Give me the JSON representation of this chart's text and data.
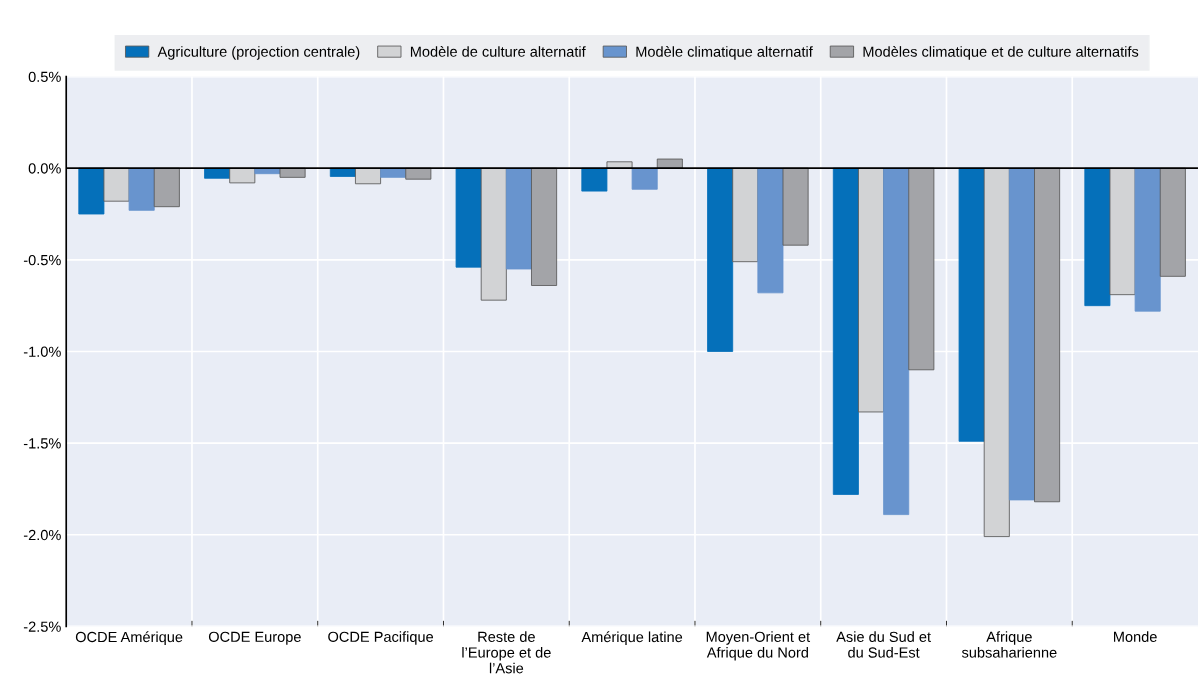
{
  "chart_data": {
    "type": "bar",
    "categories": [
      "OCDE Amérique",
      "OCDE Europe",
      "OCDE Pacifique",
      "Reste de\nl’Europe et de\nl’Asie",
      "Amérique latine",
      "Moyen-Orient et\nAfrique du Nord",
      "Asie du Sud et\ndu Sud-Est",
      "Afrique\nsubsaharienne",
      "Monde"
    ],
    "series": [
      {
        "name": "Agriculture (projection centrale)",
        "color": "#0570ba",
        "values": [
          -0.25,
          -0.055,
          -0.045,
          -0.54,
          -0.125,
          -1.0,
          -1.78,
          -1.49,
          -0.75
        ]
      },
      {
        "name": "Modèle de culture alternatif",
        "color": "#d2d3d5",
        "values": [
          -0.18,
          -0.08,
          -0.085,
          -0.72,
          0.035,
          -0.51,
          -1.33,
          -2.01,
          -0.69
        ]
      },
      {
        "name": "Modèle climatique alternatif",
        "color": "#6894ce",
        "values": [
          -0.23,
          -0.03,
          -0.05,
          -0.55,
          -0.115,
          -0.68,
          -1.89,
          -1.81,
          -0.78
        ]
      },
      {
        "name": "Modèles climatique et de culture alternatifs",
        "color": "#a3a4a8",
        "values": [
          -0.21,
          -0.05,
          -0.06,
          -0.64,
          0.05,
          -0.42,
          -1.1,
          -1.82,
          -0.59
        ]
      }
    ],
    "ylim": [
      -2.5,
      0.5
    ],
    "yticks": [
      {
        "value": -2.5,
        "label": "-2.5%"
      },
      {
        "value": -2.0,
        "label": "-2.0%"
      },
      {
        "value": -1.5,
        "label": "-1.5%"
      },
      {
        "value": -1.0,
        "label": "-1.0%"
      },
      {
        "value": -0.5,
        "label": "-0.5%"
      },
      {
        "value": 0.0,
        "label": "0.0%"
      },
      {
        "value": 0.5,
        "label": "0.5%"
      }
    ],
    "grid": true,
    "legend": "top"
  }
}
